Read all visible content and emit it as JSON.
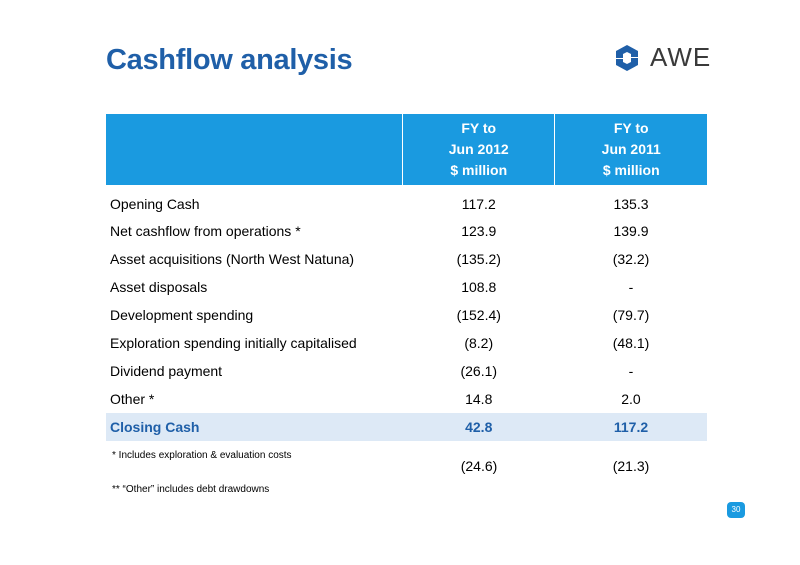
{
  "slide": {
    "title": "Cashflow analysis",
    "logo": {
      "text": "AWE",
      "icon": "awe-logo-icon",
      "color": "#1f5fa8"
    },
    "page_number": "30"
  },
  "table": {
    "header": [
      {
        "line1": "FY to",
        "line2": "Jun 2012",
        "line3": "$ million"
      },
      {
        "line1": "FY to",
        "line2": "Jun 2011",
        "line3": "$ million"
      }
    ],
    "rows": [
      {
        "label": "Opening Cash",
        "fy2012": "117.2",
        "fy2011": "135.3"
      },
      {
        "label": "Net cashflow from operations  *",
        "fy2012": "123.9",
        "fy2011": "139.9"
      },
      {
        "label": "Asset acquisitions  (North West Natuna)",
        "fy2012": "(135.2)",
        "fy2011": "(32.2)"
      },
      {
        "label": "Asset disposals",
        "fy2012": "108.8",
        "fy2011": "-"
      },
      {
        "label": "Development spending",
        "fy2012": "(152.4)",
        "fy2011": "(79.7)"
      },
      {
        "label": "Exploration spending initially capitalised",
        "fy2012": "(8.2)",
        "fy2011": "(48.1)"
      },
      {
        "label": "Dividend  payment",
        "fy2012": "(26.1)",
        "fy2011": "-"
      },
      {
        "label": "Other *",
        "fy2012": "14.8",
        "fy2011": "2.0"
      }
    ],
    "closing": {
      "label": "Closing Cash",
      "fy2012": "42.8",
      "fy2011": "117.2"
    }
  },
  "footnotes": {
    "note1": "* Includes exploration & evaluation costs",
    "note1_fy2012": "(24.6)",
    "note1_fy2011": "(21.3)",
    "note2": "** “Other” includes debt drawdowns"
  },
  "colors": {
    "header_bg": "#1a9ae0",
    "title": "#1f5fa8",
    "closing_bg": "#dde9f6"
  }
}
